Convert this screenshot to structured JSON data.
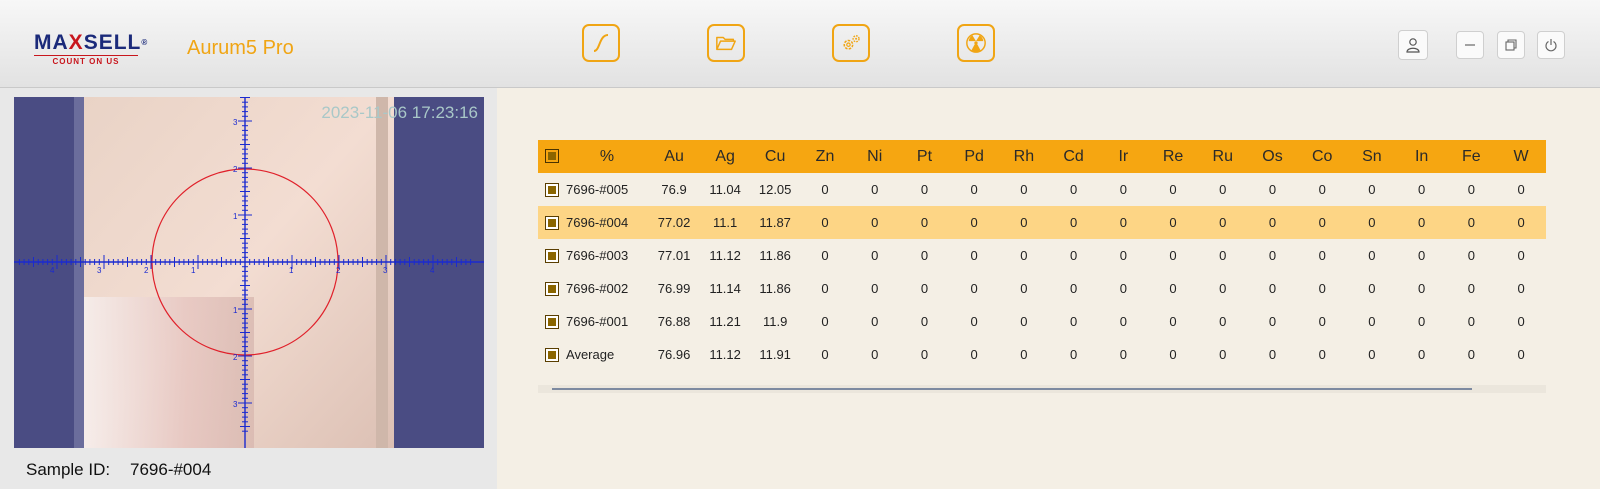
{
  "header": {
    "logo_text_a": "MA",
    "logo_text_x": "X",
    "logo_text_b": "SELL",
    "logo_reg": "®",
    "logo_tagline": "COUNT ON US",
    "app_name": "Aurum5 Pro",
    "nav_icons": [
      "curve-icon",
      "folder-icon",
      "settings-icon",
      "radiation-icon"
    ],
    "window_icons": [
      "user-icon",
      "minimize-icon",
      "restore-icon",
      "power-icon"
    ],
    "accent_color": "#f0a514"
  },
  "camera": {
    "timestamp": "2023-11-06 17:23:16",
    "scale_labels": [
      "1",
      "2",
      "3",
      "4"
    ]
  },
  "sample": {
    "label": "Sample ID:",
    "value": "7696-#004"
  },
  "table": {
    "columns": [
      "%",
      "Au",
      "Ag",
      "Cu",
      "Zn",
      "Ni",
      "Pt",
      "Pd",
      "Rh",
      "Cd",
      "Ir",
      "Re",
      "Ru",
      "Os",
      "Co",
      "Sn",
      "In",
      "Fe",
      "W"
    ],
    "rows": [
      {
        "cells": [
          "7696-#005",
          "76.9",
          "11.04",
          "12.05",
          "0",
          "0",
          "0",
          "0",
          "0",
          "0",
          "0",
          "0",
          "0",
          "0",
          "0",
          "0",
          "0",
          "0",
          "0"
        ],
        "selected": false
      },
      {
        "cells": [
          "7696-#004",
          "77.02",
          "11.1",
          "11.87",
          "0",
          "0",
          "0",
          "0",
          "0",
          "0",
          "0",
          "0",
          "0",
          "0",
          "0",
          "0",
          "0",
          "0",
          "0"
        ],
        "selected": true
      },
      {
        "cells": [
          "7696-#003",
          "77.01",
          "11.12",
          "11.86",
          "0",
          "0",
          "0",
          "0",
          "0",
          "0",
          "0",
          "0",
          "0",
          "0",
          "0",
          "0",
          "0",
          "0",
          "0"
        ],
        "selected": false
      },
      {
        "cells": [
          "7696-#002",
          "76.99",
          "11.14",
          "11.86",
          "0",
          "0",
          "0",
          "0",
          "0",
          "0",
          "0",
          "0",
          "0",
          "0",
          "0",
          "0",
          "0",
          "0",
          "0"
        ],
        "selected": false
      },
      {
        "cells": [
          "7696-#001",
          "76.88",
          "11.21",
          "11.9",
          "0",
          "0",
          "0",
          "0",
          "0",
          "0",
          "0",
          "0",
          "0",
          "0",
          "0",
          "0",
          "0",
          "0",
          "0"
        ],
        "selected": false
      },
      {
        "cells": [
          "Average",
          "76.96",
          "11.12",
          "11.91",
          "0",
          "0",
          "0",
          "0",
          "0",
          "0",
          "0",
          "0",
          "0",
          "0",
          "0",
          "0",
          "0",
          "0",
          "0"
        ],
        "selected": false
      }
    ]
  }
}
